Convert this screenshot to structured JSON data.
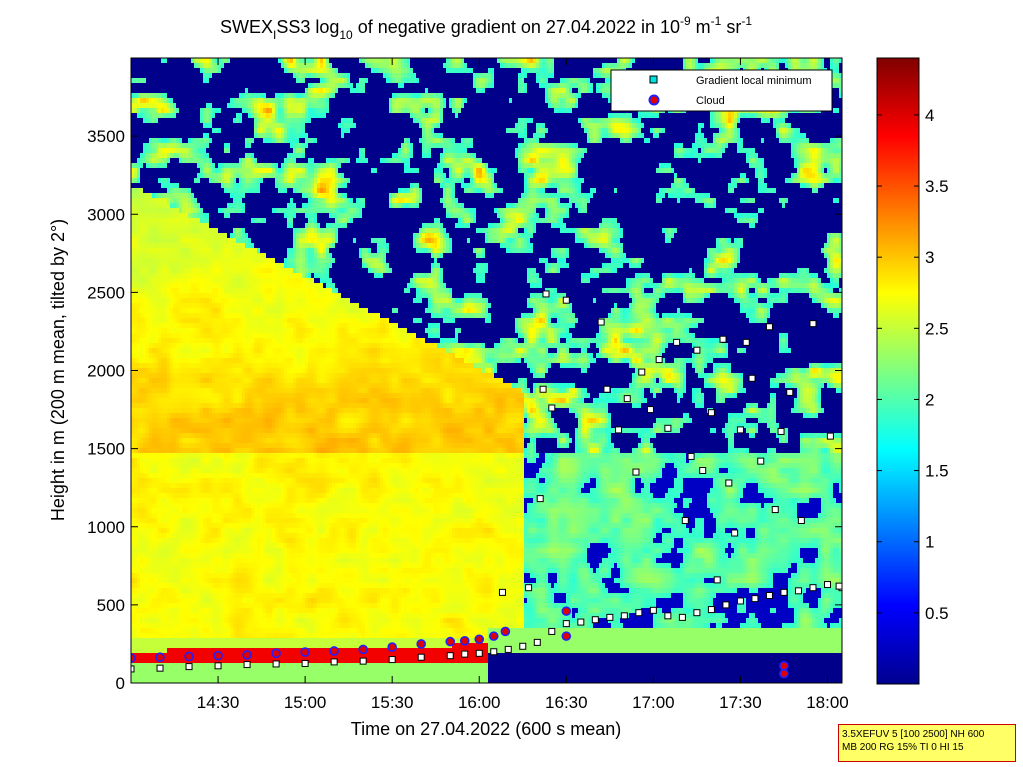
{
  "chart_data": {
    "type": "heatmap",
    "title_parts": {
      "prefix": "SWEX",
      "prefix_sub": "I",
      "name": "SS3 log",
      "log_sub": "10",
      "middle": " of negative gradient on 27.04.2022 in 10",
      "exp1": "-9",
      "unit1": " m",
      "exp2": "-1",
      "unit2": " sr",
      "exp3": "-1"
    },
    "xlabel": "Time on 27.04.2022 (600 s mean)",
    "ylabel": "Height in m (200 m mean, tilted by 2°)",
    "xlim": [
      "14:00",
      "18:05"
    ],
    "xlim_min": [
      840,
      1085
    ],
    "ylim": [
      0,
      4000
    ],
    "x_ticks": [
      "14:30",
      "15:00",
      "15:30",
      "16:00",
      "16:30",
      "17:00",
      "17:30",
      "18:00"
    ],
    "x_tick_min": [
      870,
      900,
      930,
      960,
      990,
      1020,
      1050,
      1080
    ],
    "y_ticks": [
      0,
      500,
      1000,
      1500,
      2000,
      2500,
      3000,
      3500
    ],
    "colorbar": {
      "range": [
        0,
        4.4
      ],
      "ticks": [
        "0.5",
        "1",
        "1.5",
        "2",
        "2.5",
        "3",
        "3.5",
        "4"
      ],
      "tick_values": [
        0.5,
        1,
        1.5,
        2,
        2.5,
        3,
        3.5,
        4
      ]
    },
    "legend": {
      "placement": "top-right",
      "entries": [
        "Gradient local minimum",
        "Cloud"
      ]
    },
    "series": [
      {
        "name": "Gradient local minimum",
        "points": [
          [
            840,
            90
          ],
          [
            850,
            95
          ],
          [
            860,
            105
          ],
          [
            870,
            110
          ],
          [
            880,
            118
          ],
          [
            890,
            122
          ],
          [
            900,
            125
          ],
          [
            910,
            135
          ],
          [
            920,
            140
          ],
          [
            930,
            150
          ],
          [
            940,
            165
          ],
          [
            950,
            175
          ],
          [
            955,
            185
          ],
          [
            960,
            190
          ],
          [
            965,
            200
          ],
          [
            970,
            215
          ],
          [
            975,
            235
          ],
          [
            980,
            260
          ],
          [
            985,
            330
          ],
          [
            990,
            380
          ],
          [
            995,
            390
          ],
          [
            1000,
            405
          ],
          [
            1005,
            420
          ],
          [
            1010,
            430
          ],
          [
            1015,
            450
          ],
          [
            1020,
            465
          ],
          [
            1025,
            430
          ],
          [
            1030,
            420
          ],
          [
            1035,
            450
          ],
          [
            1040,
            470
          ],
          [
            1045,
            500
          ],
          [
            1050,
            525
          ],
          [
            1055,
            540
          ],
          [
            1060,
            560
          ],
          [
            1065,
            580
          ],
          [
            1070,
            590
          ],
          [
            1075,
            610
          ],
          [
            1080,
            630
          ],
          [
            1085,
            610
          ],
          [
            968,
            580
          ],
          [
            977,
            610
          ],
          [
            981,
            1180
          ],
          [
            982,
            1880
          ],
          [
            985,
            1760
          ],
          [
            983,
            2490
          ],
          [
            990,
            2450
          ],
          [
            1002,
            2310
          ],
          [
            1004,
            1880
          ],
          [
            1008,
            1620
          ],
          [
            1011,
            1820
          ],
          [
            1014,
            1350
          ],
          [
            1016,
            1990
          ],
          [
            1019,
            1750
          ],
          [
            1022,
            2070
          ],
          [
            1025,
            1630
          ],
          [
            1028,
            2180
          ],
          [
            1031,
            1040
          ],
          [
            1033,
            1450
          ],
          [
            1035,
            2130
          ],
          [
            1037,
            1360
          ],
          [
            1040,
            1730
          ],
          [
            1042,
            660
          ],
          [
            1044,
            2200
          ],
          [
            1046,
            1280
          ],
          [
            1048,
            960
          ],
          [
            1050,
            1620
          ],
          [
            1052,
            2180
          ],
          [
            1054,
            1950
          ],
          [
            1057,
            1420
          ],
          [
            1060,
            2280
          ],
          [
            1062,
            1110
          ],
          [
            1064,
            1610
          ],
          [
            1067,
            1860
          ],
          [
            1071,
            1040
          ],
          [
            1075,
            2300
          ],
          [
            1081,
            1580
          ],
          [
            1084,
            620
          ]
        ]
      },
      {
        "name": "Cloud",
        "points": [
          [
            840,
            160
          ],
          [
            850,
            165
          ],
          [
            860,
            170
          ],
          [
            870,
            175
          ],
          [
            880,
            180
          ],
          [
            890,
            190
          ],
          [
            900,
            198
          ],
          [
            910,
            205
          ],
          [
            920,
            215
          ],
          [
            930,
            230
          ],
          [
            940,
            250
          ],
          [
            950,
            265
          ],
          [
            955,
            270
          ],
          [
            960,
            280
          ],
          [
            965,
            300
          ],
          [
            969,
            330
          ],
          [
            990,
            460
          ],
          [
            990,
            300
          ],
          [
            1065,
            110
          ],
          [
            1065,
            60
          ]
        ]
      }
    ]
  },
  "infobox": {
    "line1": "3.5XEFUV 5 [100 2500] NH 600",
    "line2": "MB 200 RG 15% TI 0 HI 15"
  }
}
